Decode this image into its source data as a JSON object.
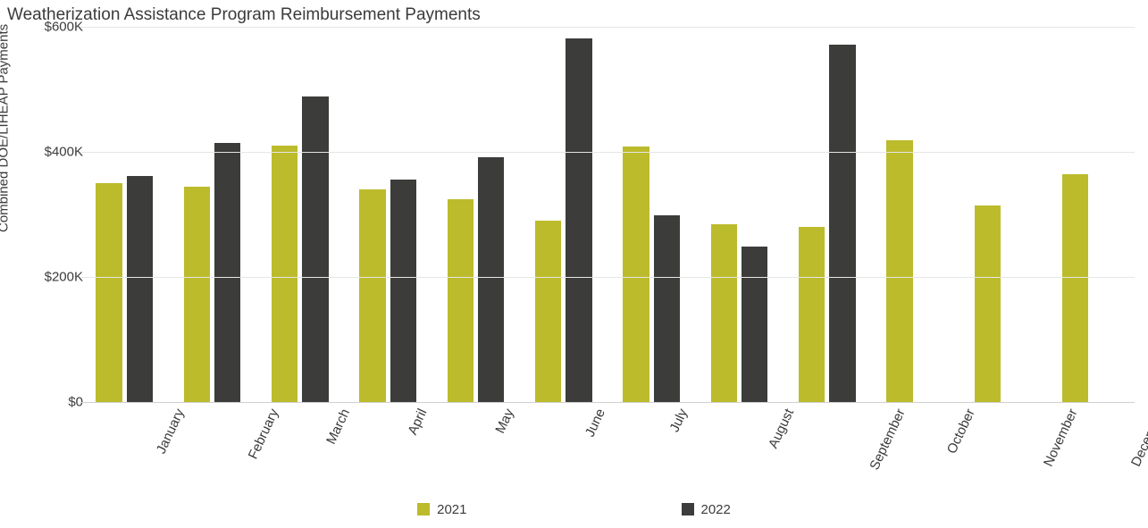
{
  "chart": {
    "type": "bar",
    "title": "Weatherization Assistance Program Reimbursement Payments",
    "ylabel": "Combined DOE/LIHEAP Payments",
    "title_fontsize": 19,
    "label_fontsize": 15,
    "tick_fontsize": 15,
    "background_color": "#ffffff",
    "grid_color": "#e6e6e6",
    "baseline_color": "#d0d0d0",
    "text_color": "#3b3b3b",
    "ylim": [
      0,
      600000
    ],
    "yticks": [
      0,
      200000,
      400000,
      600000
    ],
    "ytick_labels": [
      "$0",
      "$200K",
      "$400K",
      "$600K"
    ],
    "categories": [
      "January",
      "February",
      "March",
      "April",
      "May",
      "June",
      "July",
      "August",
      "September",
      "October",
      "November",
      "December"
    ],
    "xlabel_rotation_deg": -65,
    "group_gap_ratio": 0.35,
    "bar_gap_ratio": 0.05,
    "series": [
      {
        "name": "2021",
        "color": "#bcbb2c",
        "values": [
          350000,
          345000,
          410000,
          340000,
          325000,
          290000,
          408000,
          285000,
          280000,
          418000,
          315000,
          365000
        ]
      },
      {
        "name": "2022",
        "color": "#3c3c3a",
        "values": [
          362000,
          415000,
          488000,
          356000,
          392000,
          582000,
          298000,
          248000,
          572000,
          null,
          null,
          null
        ]
      }
    ],
    "legend": {
      "position": "bottom",
      "swatch_size": 14
    }
  }
}
